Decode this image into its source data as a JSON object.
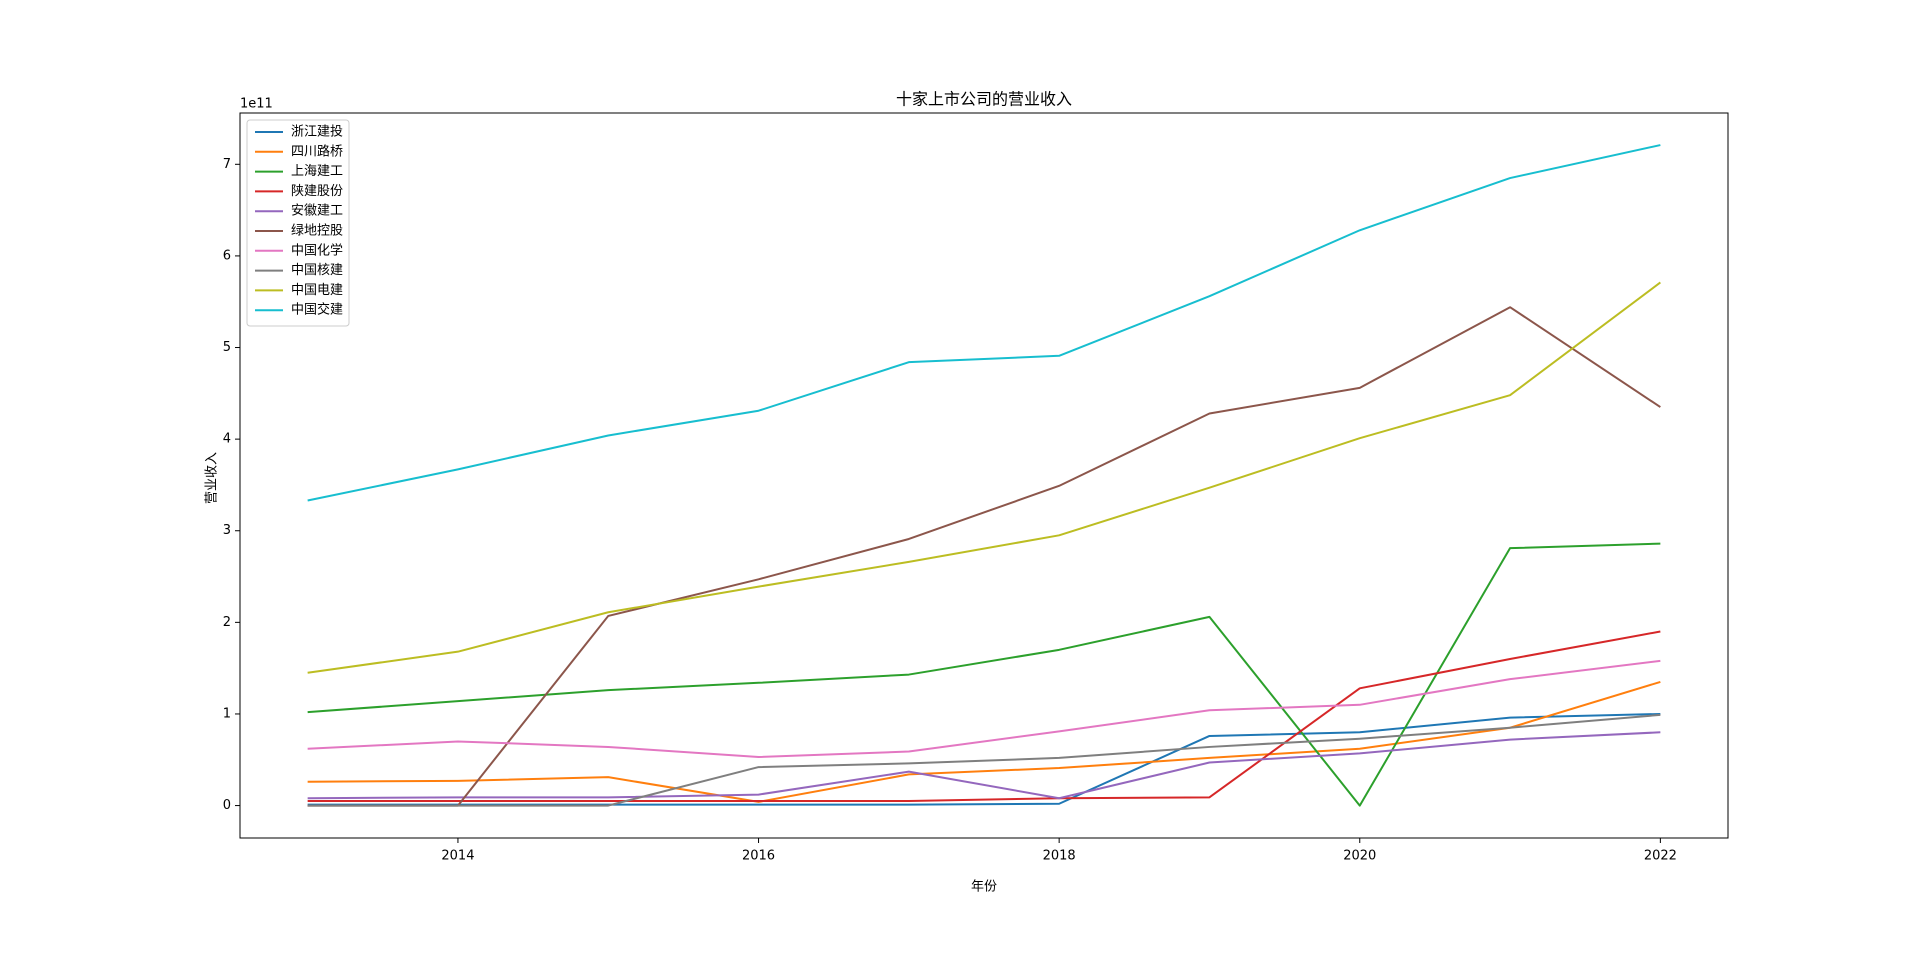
{
  "chart_data": {
    "type": "line",
    "title": "十家上市公司的营业收入",
    "xlabel": "年份",
    "ylabel": "营业收入",
    "y_offset_label": "1e11",
    "x": [
      2013,
      2014,
      2015,
      2016,
      2017,
      2018,
      2019,
      2020,
      2021,
      2022
    ],
    "xlim": [
      2012.55,
      2022.45
    ],
    "xticks": [
      2014,
      2016,
      2018,
      2020,
      2022
    ],
    "ylim": [
      -0.354,
      7.56
    ],
    "yticks": [
      0,
      1,
      2,
      3,
      4,
      5,
      6,
      7
    ],
    "grid": false,
    "legend": "upper left",
    "series": [
      {
        "name": "浙江建投",
        "color": "#1f77b4",
        "values": [
          0.01,
          0.01,
          0.01,
          0.01,
          0.01,
          0.02,
          0.76,
          0.8,
          0.96,
          1.0
        ]
      },
      {
        "name": "四川路桥",
        "color": "#ff7f0e",
        "values": [
          0.26,
          0.27,
          0.31,
          0.04,
          0.34,
          0.41,
          0.52,
          0.62,
          0.85,
          1.35
        ]
      },
      {
        "name": "上海建工",
        "color": "#2ca02c",
        "values": [
          1.02,
          1.14,
          1.26,
          1.34,
          1.43,
          1.7,
          2.06,
          0.0,
          2.81,
          2.86
        ]
      },
      {
        "name": "陕建股份",
        "color": "#d62728",
        "values": [
          0.05,
          0.05,
          0.05,
          0.05,
          0.05,
          0.08,
          0.09,
          1.28,
          1.6,
          1.9
        ]
      },
      {
        "name": "安徽建工",
        "color": "#9467bd",
        "values": [
          0.08,
          0.09,
          0.09,
          0.12,
          0.37,
          0.08,
          0.47,
          0.57,
          0.72,
          0.8
        ]
      },
      {
        "name": "绿地控股",
        "color": "#8c564b",
        "values": [
          0.0,
          0.0,
          2.07,
          2.47,
          2.91,
          3.49,
          4.28,
          4.56,
          5.44,
          4.35
        ]
      },
      {
        "name": "中国化学",
        "color": "#e377c2",
        "values": [
          0.62,
          0.7,
          0.64,
          0.53,
          0.59,
          0.81,
          1.04,
          1.1,
          1.38,
          1.58
        ]
      },
      {
        "name": "中国核建",
        "color": "#7f7f7f",
        "values": [
          0.0,
          0.0,
          0.0,
          0.42,
          0.46,
          0.52,
          0.64,
          0.73,
          0.85,
          0.99
        ]
      },
      {
        "name": "中国电建",
        "color": "#bcbd22",
        "values": [
          1.45,
          1.68,
          2.11,
          2.39,
          2.66,
          2.95,
          3.47,
          4.01,
          4.48,
          5.71
        ]
      },
      {
        "name": "中国交建",
        "color": "#17becf",
        "values": [
          3.33,
          3.67,
          4.04,
          4.31,
          4.84,
          4.91,
          5.56,
          6.28,
          6.85,
          7.21
        ]
      }
    ]
  }
}
